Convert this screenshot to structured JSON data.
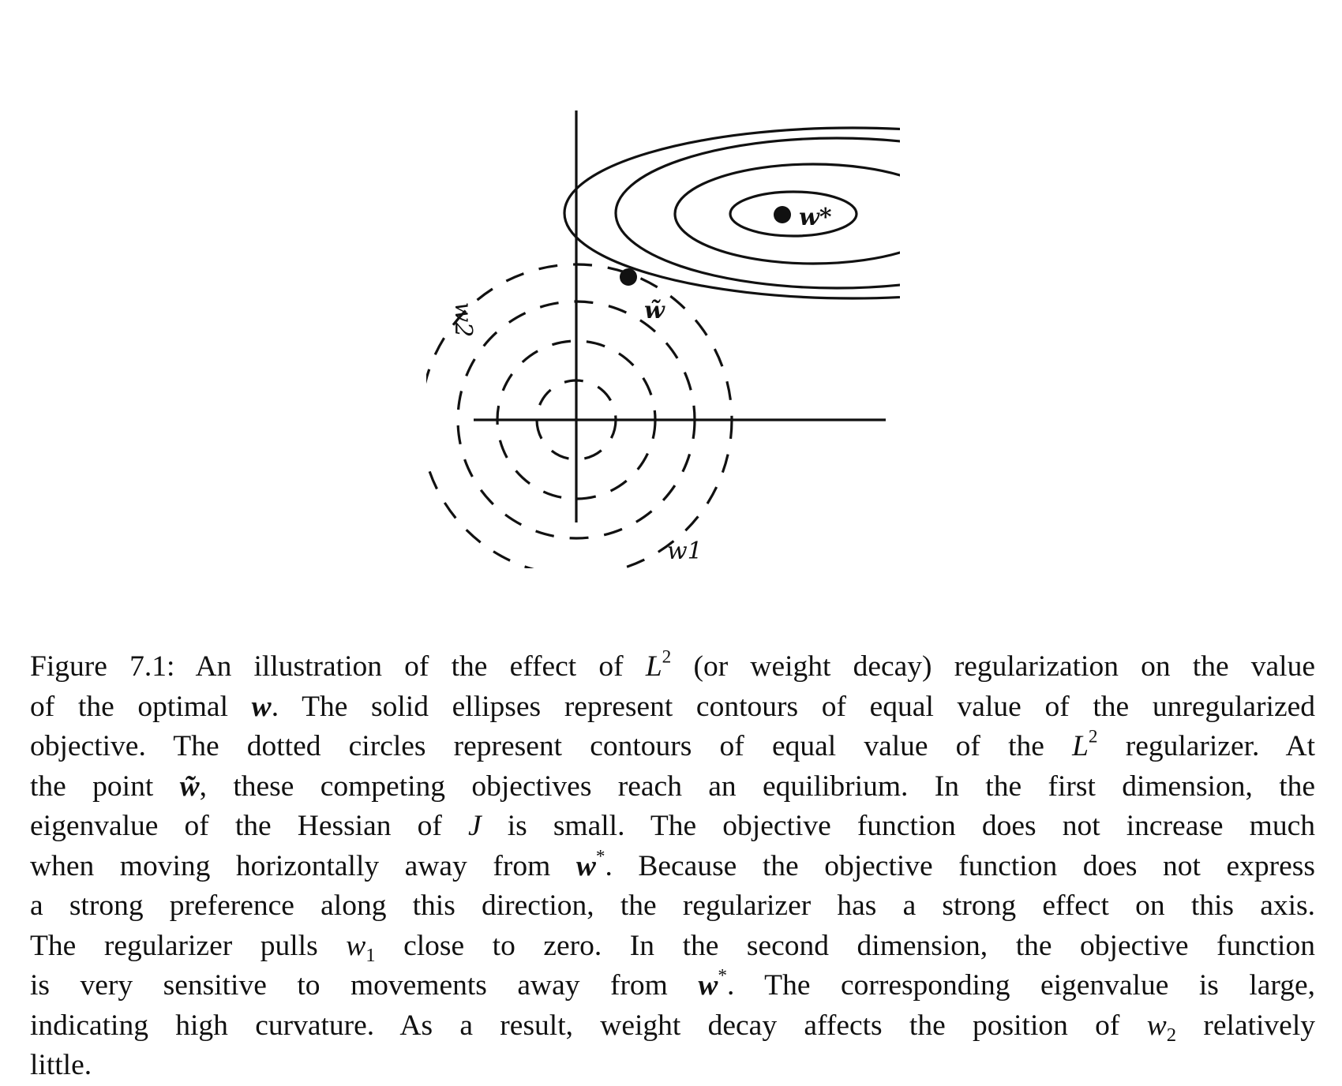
{
  "figure": {
    "labels": {
      "w_star": "w*",
      "w_tilde": "w̃",
      "w1": "w1",
      "w2": "w2"
    },
    "colors": {
      "ink": "#111111",
      "background": "#ffffff"
    }
  },
  "caption": {
    "lines": [
      [
        {
          "t": "Figure 7.1: An illustration of the effect of "
        },
        {
          "t": "L",
          "s": "m"
        },
        {
          "t": "2",
          "s": "sup"
        },
        {
          "t": " (or weight decay) regularization on the value"
        }
      ],
      [
        {
          "t": "of the optimal "
        },
        {
          "t": "w",
          "s": "mb"
        },
        {
          "t": ". The solid ellipses represent contours of equal value of the unregularized"
        }
      ],
      [
        {
          "t": "objective. The dotted circles represent contours of equal value of the "
        },
        {
          "t": "L",
          "s": "m"
        },
        {
          "t": "2",
          "s": "sup"
        },
        {
          "t": " regularizer. At"
        }
      ],
      [
        {
          "t": "the point "
        },
        {
          "t": "w̃",
          "s": "mb"
        },
        {
          "t": ", these competing objectives reach an equilibrium. In the first dimension, the"
        }
      ],
      [
        {
          "t": "eigenvalue of the Hessian of "
        },
        {
          "t": "J",
          "s": "m"
        },
        {
          "t": " is small. The objective function does not increase much"
        }
      ],
      [
        {
          "t": "when moving horizontally away from "
        },
        {
          "t": "w",
          "s": "mb"
        },
        {
          "t": "*",
          "s": "sup"
        },
        {
          "t": ". Because the objective function does not express"
        }
      ],
      [
        {
          "t": "a strong preference along this direction, the regularizer has a strong effect on this axis."
        }
      ],
      [
        {
          "t": "The regularizer pulls "
        },
        {
          "t": "w",
          "s": "m"
        },
        {
          "t": "1",
          "s": "sub"
        },
        {
          "t": " close to zero. In the second dimension, the objective function"
        }
      ],
      [
        {
          "t": "is very sensitive to movements away from "
        },
        {
          "t": "w",
          "s": "mb"
        },
        {
          "t": "*",
          "s": "sup"
        },
        {
          "t": ". The corresponding eigenvalue is large,"
        }
      ],
      [
        {
          "t": "indicating high curvature. As a result, weight decay affects the position of "
        },
        {
          "t": "w",
          "s": "m"
        },
        {
          "t": "2",
          "s": "sub"
        },
        {
          "t": " relatively"
        }
      ],
      [
        {
          "t": "little."
        }
      ]
    ]
  }
}
